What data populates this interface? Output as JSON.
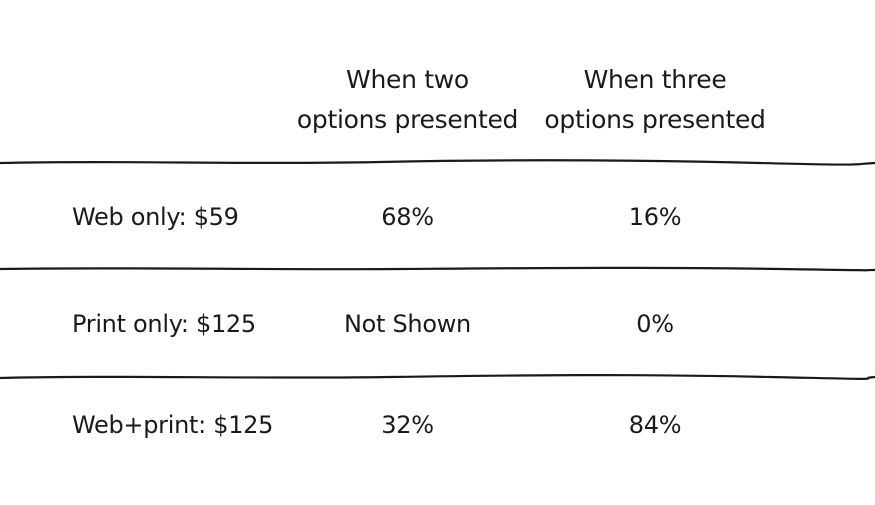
{
  "table": {
    "columns": [
      {
        "line1": "When two",
        "line2": "options presented"
      },
      {
        "line1": "When three",
        "line2": "options presented"
      }
    ],
    "rows": [
      {
        "label": "Web only: $59",
        "two": "68%",
        "three": "16%"
      },
      {
        "label": "Print only: $125",
        "two": "Not Shown",
        "three": "0%"
      },
      {
        "label": "Web+print: $125",
        "two": "32%",
        "three": "84%"
      }
    ]
  }
}
